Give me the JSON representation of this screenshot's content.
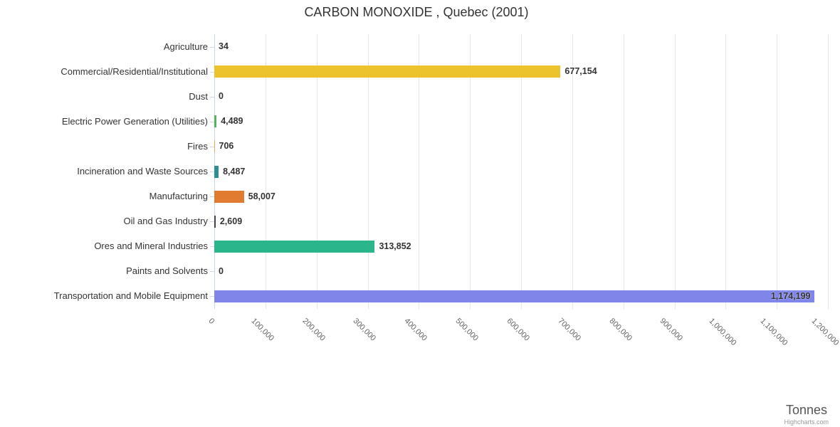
{
  "title": "CARBON MONOXIDE , Quebec (2001)",
  "x_axis_title": "Tonnes",
  "credit": "Highcharts.com",
  "chart_data": {
    "type": "bar",
    "orientation": "horizontal",
    "title": "CARBON MONOXIDE , Quebec (2001)",
    "xlabel": "Tonnes",
    "ylabel": "",
    "xlim": [
      0,
      1200000
    ],
    "x_tick_interval": 100000,
    "x_tick_labels": [
      "0",
      "100,000",
      "200,000",
      "300,000",
      "400,000",
      "500,000",
      "600,000",
      "700,000",
      "800,000",
      "900,000",
      "1,000,000",
      "1,100,000",
      "1,200,000"
    ],
    "grid": true,
    "legend": false,
    "categories": [
      "Agriculture",
      "Commercial/Residential/Institutional",
      "Dust",
      "Electric Power Generation (Utilities)",
      "Fires",
      "Incineration and Waste Sources",
      "Manufacturing",
      "Oil and Gas Industry",
      "Ores and Mineral Industries",
      "Paints and Solvents",
      "Transportation and Mobile Equipment"
    ],
    "values": [
      34,
      677154,
      0,
      4489,
      706,
      8487,
      58007,
      2609,
      313852,
      0,
      1174199
    ],
    "value_labels": [
      "34",
      "677,154",
      "0",
      "4,489",
      "706",
      "8,487",
      "58,007",
      "2,609",
      "313,852",
      "0",
      "1,174,199"
    ],
    "bar_colors": [
      "#7cb5ec",
      "#edc32d",
      "#90ed7d",
      "#55b45e",
      "#f7a35c",
      "#2d8e93",
      "#e07b2f",
      "#434348",
      "#2ab58a",
      "#f15c80",
      "#8085e9"
    ]
  }
}
